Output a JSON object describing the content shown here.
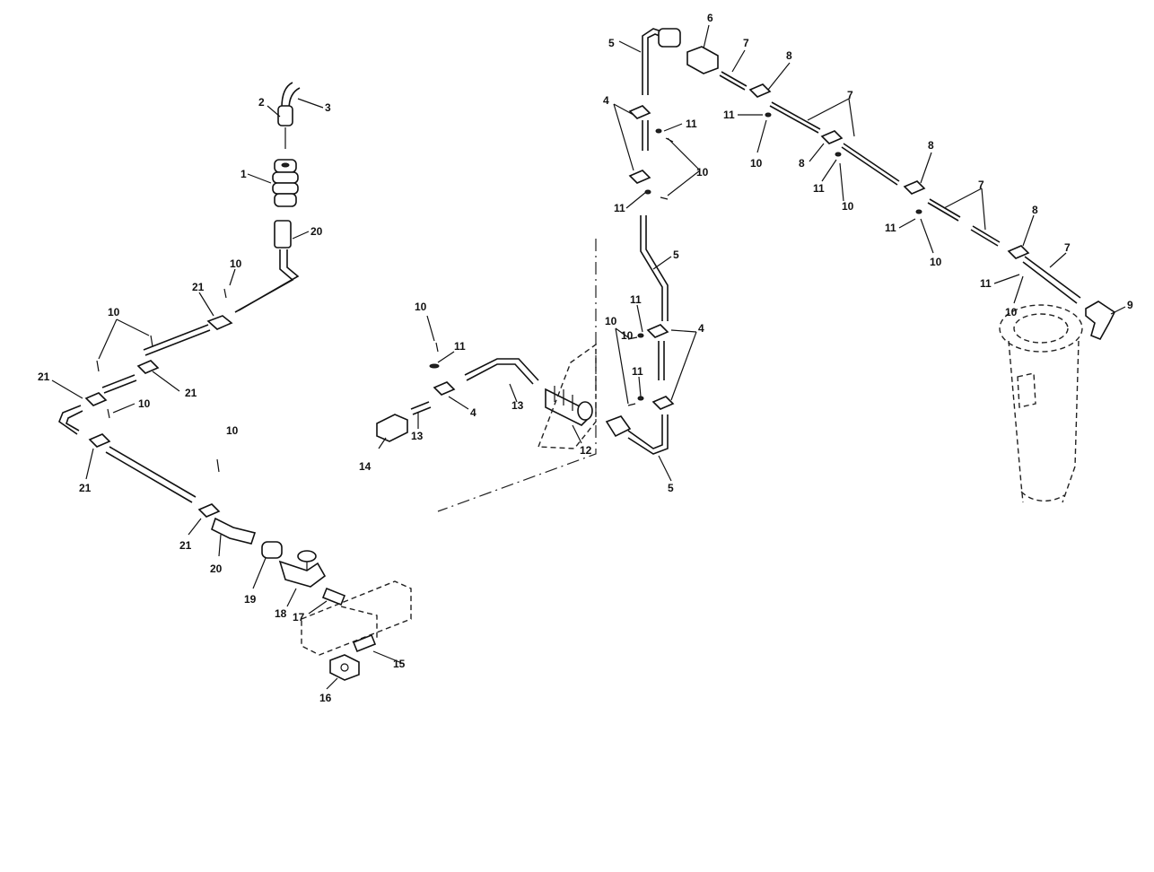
{
  "labels": {
    "l1": "1",
    "l2": "2",
    "l3": "3",
    "l20a": "20",
    "l10a": "10",
    "l21a": "21",
    "l10b": "10",
    "l21b": "21",
    "l21c": "21",
    "l10c": "10",
    "l21d": "21",
    "l10d": "10",
    "l21e": "21",
    "l20b": "20",
    "l19": "19",
    "l18": "18",
    "l17": "17",
    "l15": "15",
    "l16": "16",
    "l10e": "10",
    "l11a": "11",
    "l4a": "4",
    "l13a": "13",
    "l13b": "13",
    "l14": "14",
    "l12": "12",
    "l5a": "5",
    "l6": "6",
    "l7a": "7",
    "l8a": "8",
    "l4b": "4",
    "l11b": "11",
    "l10f": "10",
    "l11c": "11",
    "l11d": "11",
    "l10g": "10",
    "l7b": "7",
    "l8b": "8",
    "l11e": "11",
    "l10h": "10",
    "l8c": "8",
    "l7c": "7",
    "l11f": "11",
    "l10i": "10",
    "l8d": "8",
    "l7d": "7",
    "l11g": "11",
    "l10j": "10",
    "l9": "9",
    "l5b": "5",
    "l11h": "11",
    "l10k": "10",
    "l4c": "4",
    "l11i": "11",
    "l10l": "10",
    "l5c": "5"
  }
}
